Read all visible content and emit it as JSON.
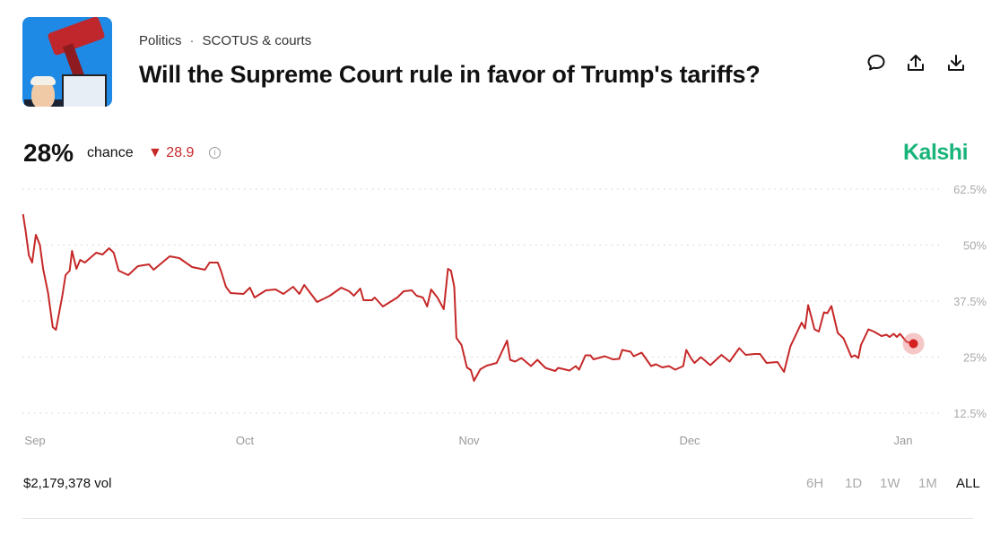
{
  "header": {
    "category": "Politics",
    "subcategory": "SCOTUS & courts",
    "title": "Will the Supreme Court rule in favor of Trump's tariffs?",
    "icons": [
      "comment-icon",
      "share-icon",
      "download-icon"
    ]
  },
  "stats": {
    "chance_value": "28%",
    "chance_label": "chance",
    "change_value": "28.9",
    "change_direction": "down",
    "brand": "Kalshi"
  },
  "colors": {
    "line": "#c62828",
    "brand": "#19b47a",
    "down": "#c62828"
  },
  "chart_data": {
    "type": "line",
    "title": "",
    "xlabel": "",
    "ylabel": "",
    "ylim": [
      12.5,
      62.5
    ],
    "y_ticks": [
      "62.5%",
      "50%",
      "37.5%",
      "25%",
      "12.5%"
    ],
    "y_tick_values": [
      62.5,
      50,
      37.5,
      25,
      12.5
    ],
    "x_ticks": [
      "Sep",
      "Oct",
      "Nov",
      "Dec",
      "Jan"
    ],
    "x_tick_dates": [
      "2025-09-01",
      "2025-10-01",
      "2025-11-01",
      "2025-12-01",
      "2026-01-01"
    ],
    "grid": "horizontal-dotted",
    "series": [
      {
        "points": [
          [
            "2025-08-30T07:00",
            56.9
          ],
          [
            "2025-08-30T16:00",
            53.1
          ],
          [
            "2025-08-31T03:00",
            47.7
          ],
          [
            "2025-08-31T14:00",
            46.1
          ],
          [
            "2025-09-01T03:00",
            52.3
          ],
          [
            "2025-09-01T17:00",
            50.0
          ],
          [
            "2025-09-02T04:00",
            44.7
          ],
          [
            "2025-09-02T21:00",
            39.3
          ],
          [
            "2025-09-03T13:00",
            31.7
          ],
          [
            "2025-09-04T00:00",
            31.1
          ],
          [
            "2025-09-04T22:00",
            38.7
          ],
          [
            "2025-09-05T09:00",
            43.3
          ],
          [
            "2025-09-05T23:00",
            44.3
          ],
          [
            "2025-09-06T07:00",
            48.7
          ],
          [
            "2025-09-06T22:00",
            44.7
          ],
          [
            "2025-09-07T11:00",
            46.7
          ],
          [
            "2025-09-08T03:00",
            46.1
          ],
          [
            "2025-09-09T18:00",
            48.3
          ],
          [
            "2025-09-10T16:00",
            47.9
          ],
          [
            "2025-09-11T14:00",
            49.3
          ],
          [
            "2025-09-12T06:00",
            48.3
          ],
          [
            "2025-09-12T23:00",
            44.3
          ],
          [
            "2025-09-14T08:00",
            43.3
          ],
          [
            "2025-09-15T17:00",
            45.3
          ],
          [
            "2025-09-17T07:00",
            45.7
          ],
          [
            "2025-09-17T23:00",
            44.5
          ],
          [
            "2025-09-20T06:00",
            47.5
          ],
          [
            "2025-09-21T15:00",
            47.1
          ],
          [
            "2025-09-23T11:00",
            45.1
          ],
          [
            "2025-09-25T07:00",
            44.5
          ],
          [
            "2025-09-25T23:00",
            46.1
          ],
          [
            "2025-09-27T03:00",
            46.1
          ],
          [
            "2025-09-27T14:00",
            44.3
          ],
          [
            "2025-09-28T07:00",
            40.7
          ],
          [
            "2025-09-28T23:00",
            39.3
          ],
          [
            "2025-09-30T19:00",
            39.1
          ],
          [
            "2025-10-01T17:00",
            40.5
          ],
          [
            "2025-10-02T08:00",
            38.3
          ],
          [
            "2025-10-03T22:00",
            39.9
          ],
          [
            "2025-10-05T06:00",
            40.1
          ],
          [
            "2025-10-06T08:00",
            39.1
          ],
          [
            "2025-10-07T16:00",
            40.7
          ],
          [
            "2025-10-08T13:00",
            39.1
          ],
          [
            "2025-10-09T05:00",
            41.1
          ],
          [
            "2025-10-11T00:00",
            37.3
          ],
          [
            "2025-10-12T18:00",
            38.7
          ],
          [
            "2025-10-14T08:00",
            40.5
          ],
          [
            "2025-10-15T10:00",
            39.7
          ],
          [
            "2025-10-16T02:00",
            38.7
          ],
          [
            "2025-10-16T23:00",
            40.3
          ],
          [
            "2025-10-17T10:00",
            37.7
          ],
          [
            "2025-10-18T13:00",
            37.7
          ],
          [
            "2025-10-18T23:00",
            38.3
          ],
          [
            "2025-10-20T02:00",
            36.3
          ],
          [
            "2025-10-22T02:00",
            38.3
          ],
          [
            "2025-10-22T23:00",
            39.7
          ],
          [
            "2025-10-24T02:00",
            39.9
          ],
          [
            "2025-10-24T18:00",
            38.7
          ],
          [
            "2025-10-25T15:00",
            38.3
          ],
          [
            "2025-10-26T05:00",
            36.3
          ],
          [
            "2025-10-26T18:00",
            40.1
          ],
          [
            "2025-10-27T15:00",
            38.3
          ],
          [
            "2025-10-28T12:00",
            35.7
          ],
          [
            "2025-10-29T02:00",
            44.7
          ],
          [
            "2025-10-29T12:00",
            44.3
          ],
          [
            "2025-10-29T23:00",
            40.7
          ],
          [
            "2025-10-30T06:00",
            29.3
          ],
          [
            "2025-10-30T23:00",
            27.7
          ],
          [
            "2025-10-31T17:00",
            22.7
          ],
          [
            "2025-11-01T06:00",
            22.1
          ],
          [
            "2025-11-01T16:00",
            19.7
          ],
          [
            "2025-11-02T13:00",
            22.3
          ],
          [
            "2025-11-03T10:00",
            23.1
          ],
          [
            "2025-11-04T18:00",
            23.7
          ],
          [
            "2025-11-06T04:00",
            28.7
          ],
          [
            "2025-11-06T14:00",
            24.4
          ],
          [
            "2025-11-07T06:00",
            24.0
          ],
          [
            "2025-11-08T03:00",
            24.8
          ],
          [
            "2025-11-09T10:00",
            23.0
          ],
          [
            "2025-11-10T07:00",
            24.4
          ],
          [
            "2025-11-11T09:00",
            22.6
          ],
          [
            "2025-11-12T17:00",
            21.9
          ],
          [
            "2025-11-13T03:00",
            22.6
          ],
          [
            "2025-11-14T16:00",
            22.0
          ],
          [
            "2025-11-15T12:00",
            23.0
          ],
          [
            "2025-11-15T23:00",
            22.2
          ],
          [
            "2025-11-16T20:00",
            25.4
          ],
          [
            "2025-11-17T12:00",
            25.4
          ],
          [
            "2025-11-17T22:00",
            24.5
          ],
          [
            "2025-11-19T11:00",
            25.2
          ],
          [
            "2025-11-20T13:00",
            24.5
          ],
          [
            "2025-11-21T10:00",
            24.6
          ],
          [
            "2025-11-21T20:00",
            26.6
          ],
          [
            "2025-11-22T23:00",
            26.2
          ],
          [
            "2025-11-23T09:00",
            25.2
          ],
          [
            "2025-11-24T11:00",
            26.0
          ],
          [
            "2025-11-25T18:00",
            23.0
          ],
          [
            "2025-11-26T10:00",
            23.4
          ],
          [
            "2025-11-27T07:00",
            22.7
          ],
          [
            "2025-11-28T04:00",
            23.0
          ],
          [
            "2025-11-29T01:00",
            22.2
          ],
          [
            "2025-11-30T03:00",
            23.0
          ],
          [
            "2025-11-30T13:00",
            26.6
          ],
          [
            "2025-12-01T05:00",
            24.7
          ],
          [
            "2025-12-01T17:00",
            23.7
          ],
          [
            "2025-12-02T15:00",
            25.0
          ],
          [
            "2025-12-04T00:00",
            23.2
          ],
          [
            "2025-12-05T15:00",
            25.5
          ],
          [
            "2025-12-06T19:00",
            24.0
          ],
          [
            "2025-12-08T05:00",
            27.0
          ],
          [
            "2025-12-09T03:00",
            25.5
          ],
          [
            "2025-12-10T12:00",
            25.7
          ],
          [
            "2025-12-11T05:00",
            25.7
          ],
          [
            "2025-12-12T04:00",
            23.7
          ],
          [
            "2025-12-13T18:00",
            23.9
          ],
          [
            "2025-12-14T17:00",
            21.7
          ],
          [
            "2025-12-15T15:00",
            27.4
          ],
          [
            "2025-12-17T06:00",
            32.7
          ],
          [
            "2025-12-17T18:00",
            31.4
          ],
          [
            "2025-12-18T05:00",
            36.6
          ],
          [
            "2025-12-18T16:00",
            34.0
          ],
          [
            "2025-12-19T03:00",
            31.2
          ],
          [
            "2025-12-19T18:00",
            30.7
          ],
          [
            "2025-12-20T12:00",
            35.0
          ],
          [
            "2025-12-21T00:00",
            34.8
          ],
          [
            "2025-12-21T14:00",
            36.4
          ],
          [
            "2025-12-22T12:00",
            30.4
          ],
          [
            "2025-12-23T08:00",
            29.2
          ],
          [
            "2025-12-24T12:00",
            25.0
          ],
          [
            "2025-12-24T23:00",
            25.4
          ],
          [
            "2025-12-25T12:00",
            24.8
          ],
          [
            "2025-12-25T21:00",
            27.7
          ],
          [
            "2025-12-26T23:00",
            31.2
          ],
          [
            "2025-12-27T18:00",
            30.7
          ],
          [
            "2025-12-28T21:00",
            29.7
          ],
          [
            "2025-12-29T14:00",
            30.0
          ],
          [
            "2025-12-30T01:00",
            29.5
          ],
          [
            "2025-12-30T15:00",
            30.2
          ],
          [
            "2025-12-31T02:00",
            29.5
          ],
          [
            "2025-12-31T13:00",
            30.2
          ],
          [
            "2026-01-01T12:00",
            28.4
          ],
          [
            "2026-01-02T12:00",
            28.0
          ]
        ]
      }
    ]
  },
  "footer": {
    "volume": "$2,179,378 vol",
    "ranges": [
      "6H",
      "1D",
      "1W",
      "1M",
      "ALL"
    ],
    "active_range": "ALL"
  }
}
